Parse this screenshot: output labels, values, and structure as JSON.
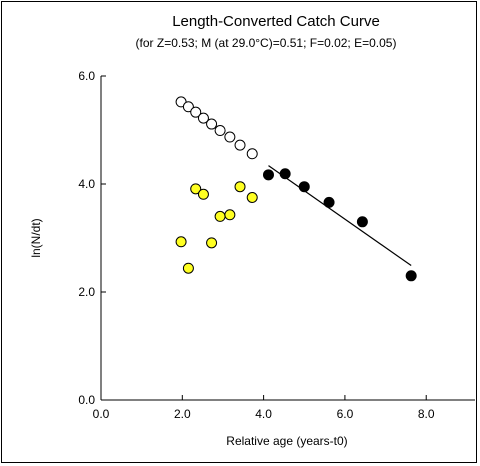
{
  "chart_data": {
    "type": "scatter",
    "title": "Length-Converted Catch Curve",
    "subtitle": "(for Z=0.53; M (at 29.0°C)=0.51; F=0.02; E=0.05)",
    "xlabel": "Relative age (years-t0)",
    "ylabel": "ln(N/dt)",
    "xlim": [
      0,
      9.2
    ],
    "ylim": [
      0,
      6
    ],
    "x_ticks": [
      0,
      2,
      4,
      6,
      8
    ],
    "x_tick_labels": [
      "0.0",
      "2.0",
      "4.0",
      "6.0",
      "8.0"
    ],
    "y_ticks": [
      0,
      2,
      4,
      6
    ],
    "y_tick_labels": [
      "0.0",
      "2.0",
      "4.0",
      "6.0"
    ],
    "grid": false,
    "series": [
      {
        "style": "open",
        "color": "#ffffff",
        "points": [
          [
            1.97,
            5.52
          ],
          [
            2.15,
            5.43
          ],
          [
            2.33,
            5.33
          ],
          [
            2.52,
            5.22
          ],
          [
            2.72,
            5.11
          ],
          [
            2.93,
            4.99
          ],
          [
            3.17,
            4.87
          ],
          [
            3.42,
            4.72
          ],
          [
            3.72,
            4.56
          ]
        ]
      },
      {
        "style": "filled",
        "color": "#000000",
        "points": [
          [
            4.12,
            4.17
          ],
          [
            4.53,
            4.19
          ],
          [
            5.0,
            3.95
          ],
          [
            5.61,
            3.66
          ],
          [
            6.43,
            3.3
          ],
          [
            7.63,
            2.3
          ]
        ]
      },
      {
        "style": "yellow",
        "color": "#ffff22",
        "points": [
          [
            1.97,
            2.93
          ],
          [
            2.15,
            2.44
          ],
          [
            2.33,
            3.91
          ],
          [
            2.52,
            3.81
          ],
          [
            2.72,
            2.91
          ],
          [
            2.93,
            3.4
          ],
          [
            3.17,
            3.43
          ],
          [
            3.42,
            3.95
          ],
          [
            3.72,
            3.75
          ]
        ]
      }
    ],
    "regression_line": {
      "x1": 4.12,
      "y1": 4.34,
      "x2": 7.63,
      "y2": 2.49
    }
  }
}
